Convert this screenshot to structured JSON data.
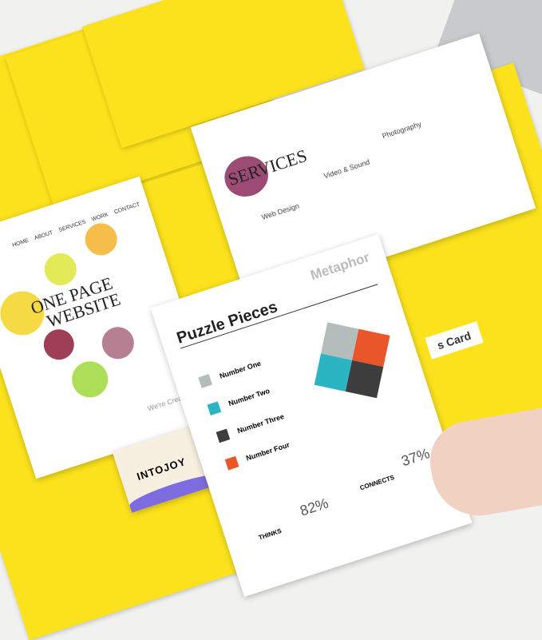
{
  "colors": {
    "folder": "#fbe21c",
    "teal": "#2bb5c2",
    "orange": "#e8562a",
    "dark": "#3d3d3d",
    "gray": "#b5bcbc"
  },
  "website_sheet": {
    "nav": [
      "HOME",
      "ABOUT",
      "SERVICES",
      "WORK",
      "CONTACT"
    ],
    "title_line1": "ONE PAGE",
    "title_line2": "WEBSITE",
    "tagline": "We're Creative"
  },
  "services_sheet": {
    "title": "SERVICES",
    "items": [
      "Web Design",
      "Video & Sound",
      "Photography"
    ]
  },
  "business_card": {
    "brand": "INTOJOY",
    "pocket_label": "s Card"
  },
  "flyer": {
    "title": "Puzzle Pieces",
    "subtitle": "Metaphor",
    "items": [
      "Number One",
      "Number Two",
      "Number Three",
      "Number Four"
    ],
    "stats": [
      {
        "label": "THINKS",
        "value": "82%"
      },
      {
        "label": "CONNECTS",
        "value": "37%"
      }
    ]
  }
}
